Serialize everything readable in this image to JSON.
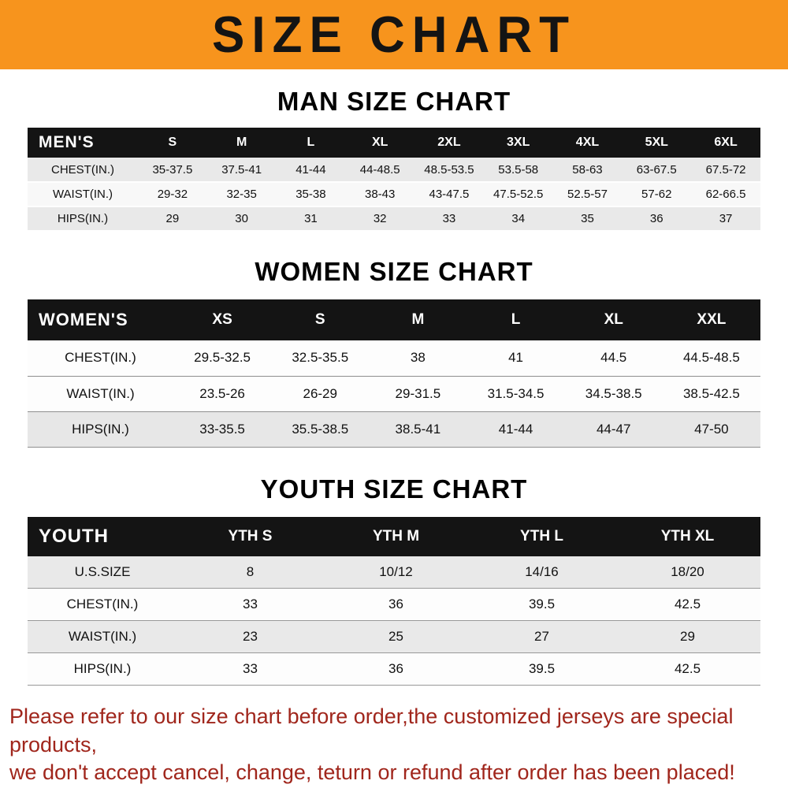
{
  "banner": {
    "title": "SIZE CHART"
  },
  "colors": {
    "banner_bg": "#f7941d",
    "table_header_bg": "#141414",
    "row_stripe": "#e9e9e9",
    "footer_text": "#a0261c"
  },
  "chart_data": [
    {
      "type": "table",
      "title": "MAN SIZE CHART",
      "corner_label": "MEN'S",
      "columns": [
        "S",
        "M",
        "L",
        "XL",
        "2XL",
        "3XL",
        "4XL",
        "5XL",
        "6XL"
      ],
      "rows": [
        {
          "label": "CHEST(IN.)",
          "values": [
            "35-37.5",
            "37.5-41",
            "41-44",
            "44-48.5",
            "48.5-53.5",
            "53.5-58",
            "58-63",
            "63-67.5",
            "67.5-72"
          ]
        },
        {
          "label": "WAIST(IN.)",
          "values": [
            "29-32",
            "32-35",
            "35-38",
            "38-43",
            "43-47.5",
            "47.5-52.5",
            "52.5-57",
            "57-62",
            "62-66.5"
          ]
        },
        {
          "label": "HIPS(IN.)",
          "values": [
            "29",
            "30",
            "31",
            "32",
            "33",
            "34",
            "35",
            "36",
            "37"
          ]
        }
      ]
    },
    {
      "type": "table",
      "title": "WOMEN SIZE CHART",
      "corner_label": "WOMEN'S",
      "columns": [
        "XS",
        "S",
        "M",
        "L",
        "XL",
        "XXL"
      ],
      "rows": [
        {
          "label": "CHEST(IN.)",
          "values": [
            "29.5-32.5",
            "32.5-35.5",
            "38",
            "41",
            "44.5",
            "44.5-48.5"
          ]
        },
        {
          "label": "WAIST(IN.)",
          "values": [
            "23.5-26",
            "26-29",
            "29-31.5",
            "31.5-34.5",
            "34.5-38.5",
            "38.5-42.5"
          ]
        },
        {
          "label": "HIPS(IN.)",
          "values": [
            "33-35.5",
            "35.5-38.5",
            "38.5-41",
            "41-44",
            "44-47",
            "47-50"
          ]
        }
      ]
    },
    {
      "type": "table",
      "title": "YOUTH SIZE CHART",
      "corner_label": "YOUTH",
      "columns": [
        "YTH S",
        "YTH M",
        "YTH L",
        "YTH XL"
      ],
      "rows": [
        {
          "label": "U.S.SIZE",
          "values": [
            "8",
            "10/12",
            "14/16",
            "18/20"
          ]
        },
        {
          "label": "CHEST(IN.)",
          "values": [
            "33",
            "36",
            "39.5",
            "42.5"
          ]
        },
        {
          "label": "WAIST(IN.)",
          "values": [
            "23",
            "25",
            "27",
            "29"
          ]
        },
        {
          "label": "HIPS(IN.)",
          "values": [
            "33",
            "36",
            "39.5",
            "42.5"
          ]
        }
      ]
    }
  ],
  "footer": {
    "line1": "Please refer to our size chart before order,the customized jerseys are special products,",
    "line2": "we don't accept cancel, change, teturn or refund after order has been placed!"
  }
}
